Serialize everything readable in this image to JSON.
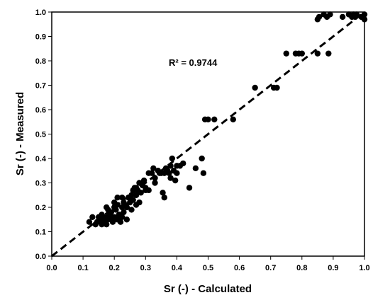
{
  "chart_data": {
    "type": "scatter",
    "xlabel": "Sr (-) - Calculated",
    "ylabel": "Sr (-) - Measured",
    "xlim": [
      0,
      1
    ],
    "ylim": [
      0,
      1
    ],
    "xticks": [
      "0.0",
      "0.1",
      "0.2",
      "0.3",
      "0.4",
      "0.5",
      "0.6",
      "0.7",
      "0.8",
      "0.9",
      "1.0"
    ],
    "yticks": [
      "0.0",
      "0.1",
      "0.2",
      "0.3",
      "0.4",
      "0.5",
      "0.6",
      "0.7",
      "0.8",
      "0.9",
      "1.0"
    ],
    "grid": false,
    "legend": "none",
    "annotation": "R² = 0.9744",
    "trendline": {
      "style": "dashed",
      "from": [
        0,
        0
      ],
      "to": [
        1,
        1
      ]
    },
    "series": [
      {
        "points": [
          [
            0.145,
            0.14
          ],
          [
            0.15,
            0.16
          ],
          [
            0.155,
            0.15
          ],
          [
            0.16,
            0.17
          ],
          [
            0.165,
            0.14
          ],
          [
            0.17,
            0.16
          ],
          [
            0.175,
            0.2
          ],
          [
            0.18,
            0.15
          ],
          [
            0.185,
            0.17
          ],
          [
            0.19,
            0.18
          ],
          [
            0.195,
            0.14
          ],
          [
            0.2,
            0.22
          ],
          [
            0.2,
            0.16
          ],
          [
            0.205,
            0.19
          ],
          [
            0.21,
            0.15
          ],
          [
            0.215,
            0.17
          ],
          [
            0.22,
            0.14
          ],
          [
            0.225,
            0.16
          ],
          [
            0.225,
            0.2
          ],
          [
            0.23,
            0.18
          ],
          [
            0.235,
            0.21
          ],
          [
            0.24,
            0.15
          ],
          [
            0.245,
            0.24
          ],
          [
            0.25,
            0.22
          ],
          [
            0.255,
            0.19
          ],
          [
            0.26,
            0.23
          ],
          [
            0.265,
            0.28
          ],
          [
            0.27,
            0.25
          ],
          [
            0.275,
            0.27
          ],
          [
            0.28,
            0.22
          ],
          [
            0.285,
            0.26
          ],
          [
            0.29,
            0.3
          ],
          [
            0.295,
            0.31
          ],
          [
            0.3,
            0.28
          ],
          [
            0.31,
            0.27
          ],
          [
            0.32,
            0.34
          ],
          [
            0.325,
            0.36
          ],
          [
            0.33,
            0.3
          ],
          [
            0.34,
            0.35
          ],
          [
            0.345,
            0.34
          ],
          [
            0.35,
            0.34
          ],
          [
            0.355,
            0.26
          ],
          [
            0.36,
            0.24
          ],
          [
            0.365,
            0.36
          ],
          [
            0.37,
            0.35
          ],
          [
            0.375,
            0.34
          ],
          [
            0.38,
            0.37
          ],
          [
            0.385,
            0.4
          ],
          [
            0.39,
            0.35
          ],
          [
            0.395,
            0.31
          ],
          [
            0.4,
            0.34
          ],
          [
            0.41,
            0.37
          ],
          [
            0.42,
            0.38
          ],
          [
            0.44,
            0.28
          ],
          [
            0.46,
            0.36
          ],
          [
            0.48,
            0.4
          ],
          [
            0.485,
            0.34
          ],
          [
            0.49,
            0.56
          ],
          [
            0.5,
            0.56
          ],
          [
            0.52,
            0.56
          ],
          [
            0.58,
            0.56
          ],
          [
            0.65,
            0.69
          ],
          [
            0.71,
            0.69
          ],
          [
            0.72,
            0.69
          ],
          [
            0.75,
            0.83
          ],
          [
            0.78,
            0.83
          ],
          [
            0.79,
            0.83
          ],
          [
            0.8,
            0.83
          ],
          [
            0.85,
            0.83
          ],
          [
            0.885,
            0.83
          ],
          [
            0.85,
            0.97
          ],
          [
            0.855,
            0.98
          ],
          [
            0.87,
            0.99
          ],
          [
            0.88,
            0.98
          ],
          [
            0.89,
            0.99
          ],
          [
            0.93,
            0.98
          ],
          [
            0.95,
            0.99
          ],
          [
            0.96,
            0.98
          ],
          [
            0.965,
            0.99
          ],
          [
            0.97,
            0.98
          ],
          [
            0.975,
            0.99
          ],
          [
            0.99,
            0.98
          ],
          [
            1.0,
            0.99
          ],
          [
            1.0,
            0.97
          ],
          [
            0.12,
            0.14
          ],
          [
            0.13,
            0.16
          ],
          [
            0.14,
            0.13
          ],
          [
            0.16,
            0.13
          ],
          [
            0.175,
            0.13
          ],
          [
            0.21,
            0.24
          ],
          [
            0.225,
            0.24
          ],
          [
            0.24,
            0.2
          ],
          [
            0.25,
            0.24
          ],
          [
            0.27,
            0.21
          ],
          [
            0.28,
            0.3
          ],
          [
            0.3,
            0.27
          ],
          [
            0.31,
            0.34
          ],
          [
            0.33,
            0.32
          ],
          [
            0.36,
            0.34
          ],
          [
            0.38,
            0.32
          ],
          [
            0.4,
            0.37
          ],
          [
            0.255,
            0.25
          ],
          [
            0.26,
            0.27
          ],
          [
            0.27,
            0.28
          ],
          [
            0.29,
            0.29
          ],
          [
            0.19,
            0.16
          ],
          [
            0.18,
            0.19
          ],
          [
            0.2,
            0.2
          ],
          [
            0.21,
            0.21
          ],
          [
            0.23,
            0.22
          ]
        ]
      }
    ]
  }
}
